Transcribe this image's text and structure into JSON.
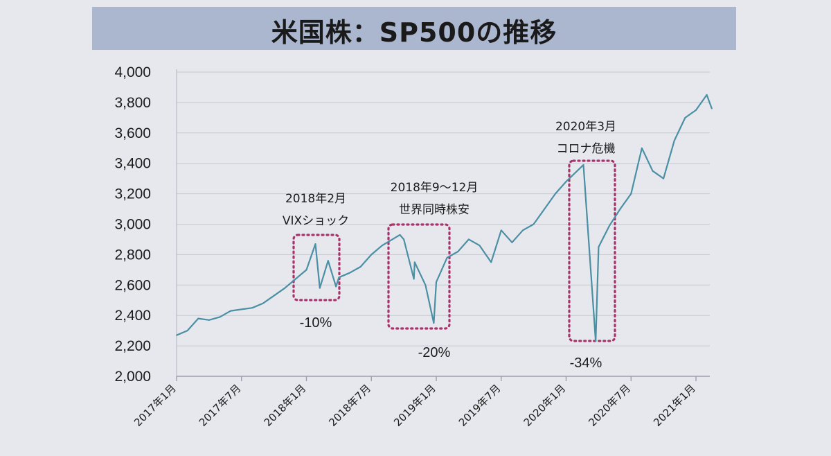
{
  "title": "米国株：SP500の推移",
  "colors": {
    "background": "#e6e8ee",
    "title_bar": "#aab7cf",
    "line": "#4a8fa3",
    "highlight_box": "#a8326a",
    "grid": "#c6c9d1"
  },
  "chart_data": {
    "type": "line",
    "title": "米国株：SP500の推移",
    "xlabel": "",
    "ylabel": "",
    "ylim": [
      2000,
      4000
    ],
    "ytick_labels": [
      "2,000",
      "2,200",
      "2,400",
      "2,600",
      "2,800",
      "3,000",
      "3,200",
      "3,400",
      "3,600",
      "3,800",
      "4,000"
    ],
    "xtick_labels": [
      "2017年1月",
      "2017年7月",
      "2018年1月",
      "2018年7月",
      "2019年1月",
      "2019年7月",
      "2020年1月",
      "2020年7月",
      "2021年1月"
    ],
    "grid": true,
    "x_start": "2017-01",
    "series": [
      {
        "name": "",
        "x": [
          "2017-01",
          "2017-02",
          "2017-03",
          "2017-04",
          "2017-05",
          "2017-06",
          "2017-07",
          "2017-08",
          "2017-09",
          "2017-10",
          "2017-11",
          "2017-12",
          "2018-01",
          "2018-01-26",
          "2018-02-08",
          "2018-03",
          "2018-03-23",
          "2018-04",
          "2018-05",
          "2018-06",
          "2018-07",
          "2018-08",
          "2018-09-20",
          "2018-10",
          "2018-10-29",
          "2018-11",
          "2018-12",
          "2018-12-24",
          "2019-01",
          "2019-02",
          "2019-03",
          "2019-04",
          "2019-05",
          "2019-06-03",
          "2019-07",
          "2019-08",
          "2019-09",
          "2019-10",
          "2019-11",
          "2019-12",
          "2020-01",
          "2020-02-19",
          "2020-03-23",
          "2020-04",
          "2020-05",
          "2020-06",
          "2020-07",
          "2020-08",
          "2020-09",
          "2020-10",
          "2020-11",
          "2020-12",
          "2021-01",
          "2021-02",
          "2021-02-15"
        ],
        "y": [
          2270,
          2300,
          2380,
          2370,
          2390,
          2430,
          2440,
          2450,
          2480,
          2530,
          2580,
          2640,
          2700,
          2870,
          2580,
          2760,
          2590,
          2650,
          2680,
          2720,
          2800,
          2860,
          2930,
          2900,
          2640,
          2750,
          2600,
          2350,
          2620,
          2780,
          2820,
          2900,
          2860,
          2750,
          2960,
          2880,
          2960,
          3000,
          3100,
          3200,
          3280,
          3390,
          2230,
          2850,
          2990,
          3100,
          3200,
          3500,
          3350,
          3300,
          3550,
          3700,
          3750,
          3850,
          3760
        ]
      }
    ],
    "annotations": [
      {
        "lines": [
          "2018年2月",
          "VIXショック"
        ],
        "change": "-10%"
      },
      {
        "lines": [
          "2018年9～12月",
          "世界同時株安"
        ],
        "change": "-20%"
      },
      {
        "lines": [
          "2020年3月",
          "コロナ危機"
        ],
        "change": "-34%"
      }
    ]
  }
}
